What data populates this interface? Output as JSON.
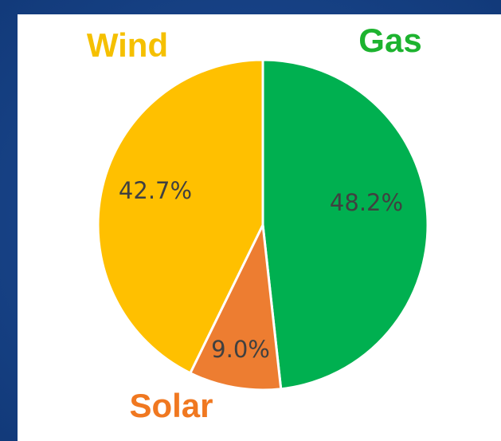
{
  "chart_data": {
    "type": "pie",
    "categories": [
      "Gas",
      "Solar",
      "Wind"
    ],
    "values": [
      48.2,
      9.0,
      42.7
    ],
    "value_labels": [
      "48.2%",
      "9.0%",
      "42.7%"
    ],
    "colors": [
      "#00b050",
      "#ed7d31",
      "#ffc000"
    ],
    "label_colors": [
      "#1db32f",
      "#f07820",
      "#f5c000"
    ]
  }
}
